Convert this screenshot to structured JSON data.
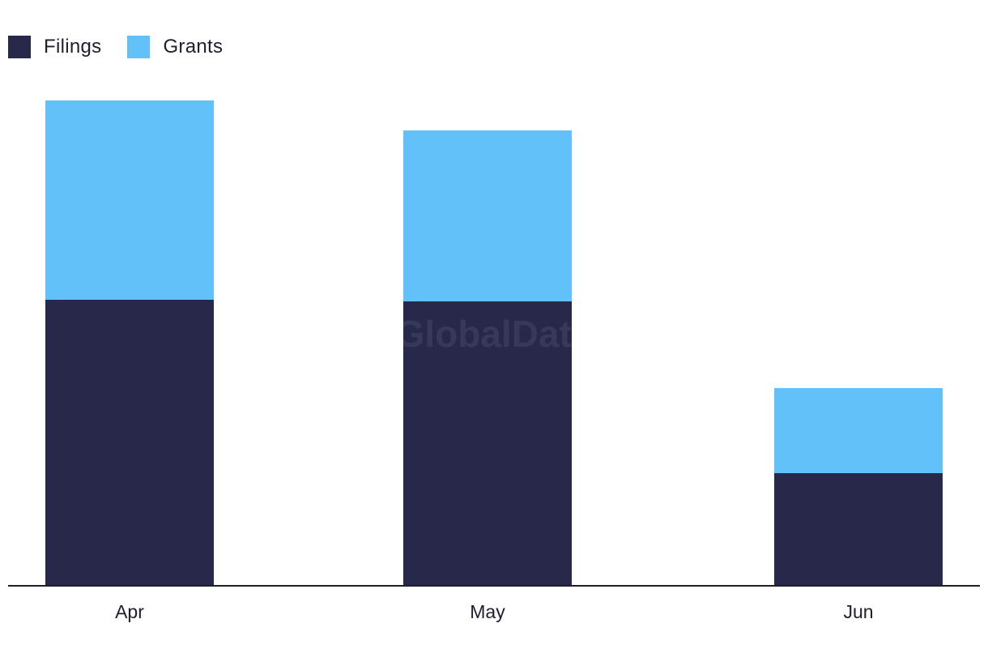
{
  "watermark": "GlobalData",
  "legend": [
    {
      "label": "Filings",
      "color": "#28284b"
    },
    {
      "label": "Grants",
      "color": "#62c1f8"
    }
  ],
  "chart_data": {
    "type": "bar",
    "stacked": true,
    "categories": [
      "Apr",
      "May",
      "Jun"
    ],
    "series": [
      {
        "name": "Filings",
        "values": [
          353,
          351,
          139
        ],
        "color": "#28284b"
      },
      {
        "name": "Grants",
        "values": [
          246,
          211,
          105
        ],
        "color": "#62c1f8"
      }
    ],
    "ylim": [
      0,
      600
    ],
    "grid": false,
    "legend_position": "top-left"
  }
}
